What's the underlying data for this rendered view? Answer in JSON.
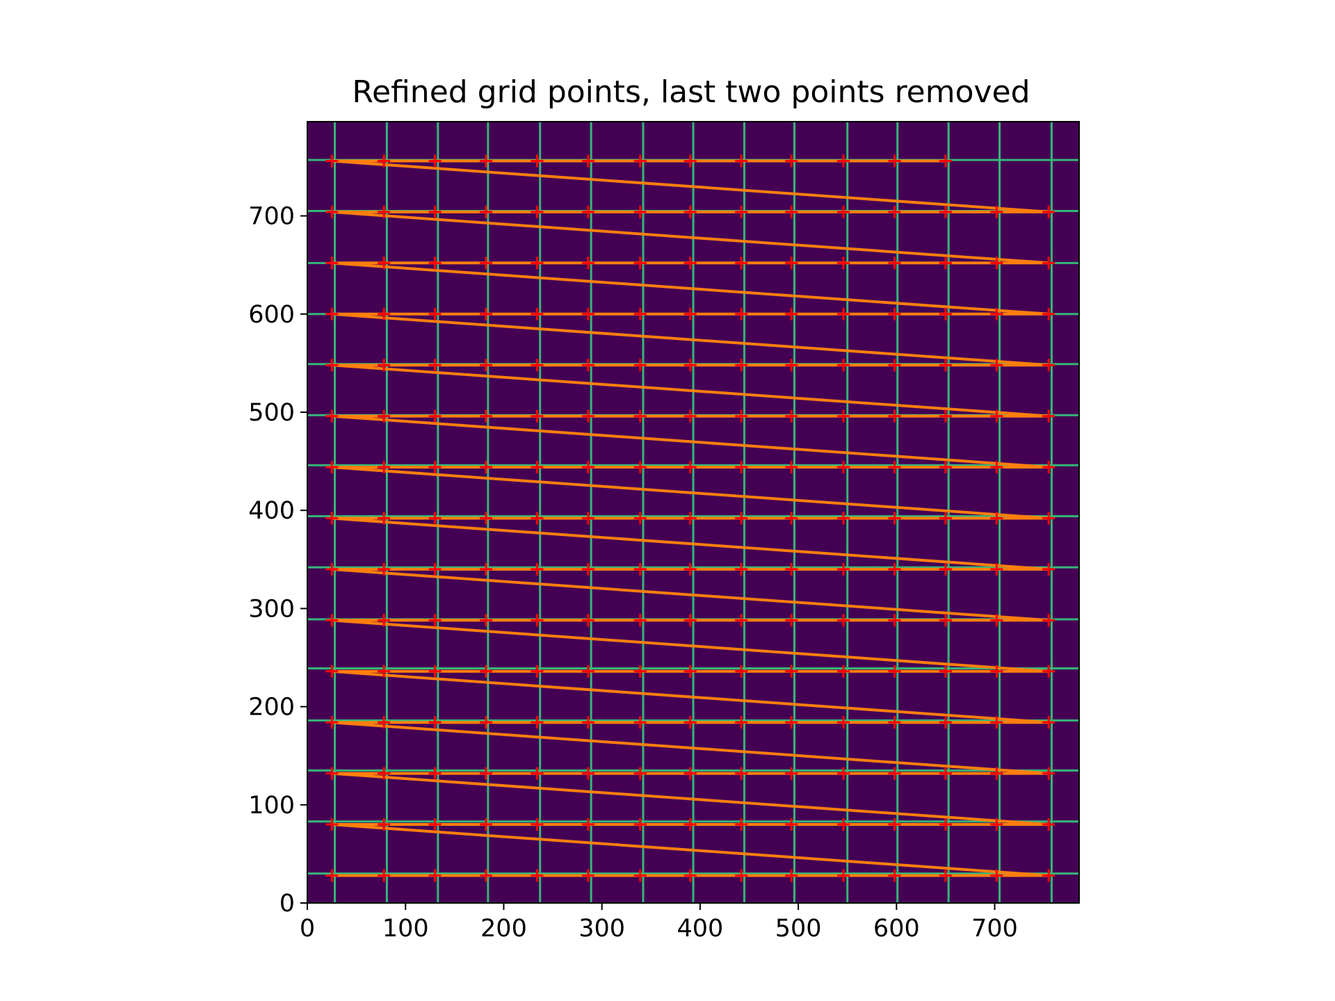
{
  "chart_data": {
    "type": "scatter",
    "title": "Refined grid points, last two points removed",
    "xlabel": "",
    "ylabel": "",
    "xlim": [
      0,
      786
    ],
    "ylim": [
      0,
      796
    ],
    "y_inverted": false,
    "xticks": [
      0,
      100,
      200,
      300,
      400,
      500,
      600,
      700
    ],
    "yticks": [
      0,
      100,
      200,
      300,
      400,
      500,
      600,
      700
    ],
    "grid": false,
    "legend": "none",
    "background_image": {
      "description_colormap": "viridis",
      "background_color": "#440154",
      "line_color": "#35b779",
      "vertical_lines_x": [
        28,
        81,
        133,
        184,
        237,
        289,
        342,
        393,
        445,
        496,
        550,
        601,
        653,
        705,
        758
      ],
      "horizontal_lines_y": [
        30,
        83,
        135,
        186,
        239,
        289,
        342,
        394,
        446,
        497,
        549,
        600,
        652,
        705,
        757
      ]
    },
    "grid_points": {
      "marker": "plus",
      "color": "#ff0000",
      "x": [
        25,
        78,
        130,
        182,
        234,
        286,
        339,
        390,
        442,
        493,
        546,
        598,
        650,
        702,
        755
      ],
      "y": [
        28,
        80,
        132,
        184,
        236,
        288,
        340,
        392,
        444,
        496,
        548,
        600,
        652,
        704,
        756
      ],
      "removed_from_end": 2
    },
    "path_line": {
      "color": "#ff7f0e",
      "order": "row-major by x within each y row"
    }
  }
}
